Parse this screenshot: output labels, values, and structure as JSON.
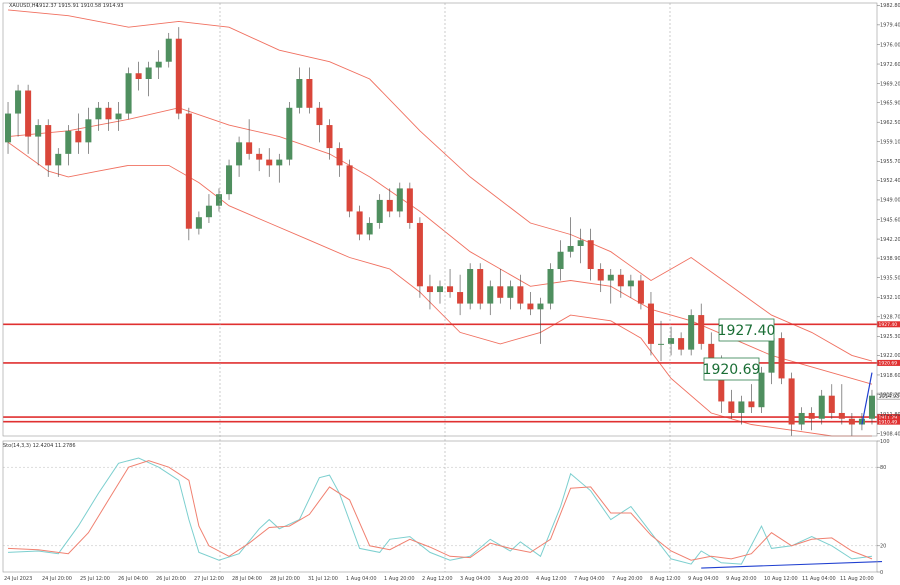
{
  "window": {
    "title": "XAUUSD,H4",
    "ohlc_text": "1912.37 1915.91 1910.58 1914.93"
  },
  "indicator": {
    "title": "Sto(14,3,3) 12.4204 11.2786"
  },
  "annotations": {
    "level_1": "1927.40",
    "level_2": "1920.69"
  },
  "colors": {
    "bull": "#4f8f5f",
    "bear": "#d9463a",
    "band": "#f07060",
    "level_line": "#e03030",
    "stoch_main": "#7ccfcf",
    "stoch_signal": "#f08070",
    "trendline": "#2040d0",
    "annotation_text": "#1a6e35",
    "annotation_border": "#2f7f4f"
  },
  "chart_data": [
    {
      "type": "candlestick",
      "symbol": "XAUUSD",
      "timeframe": "H4",
      "ylim": [
        1908.0,
        1983.2
      ],
      "y_ticks": [
        "1982.80",
        "1979.40",
        "1976.00",
        "1972.60",
        "1969.20",
        "1965.90",
        "1962.50",
        "1959.10",
        "1955.70",
        "1952.40",
        "1949.00",
        "1945.60",
        "1942.20",
        "1938.90",
        "1935.50",
        "1932.10",
        "1928.70",
        "1925.30",
        "1922.00",
        "1918.60",
        "1915.20",
        "1911.80",
        "1908.40"
      ],
      "x_ticks": [
        "24 Jul 2023",
        "24 Jul 20:00",
        "25 Jul 12:00",
        "26 Jul 04:00",
        "26 Jul 20:00",
        "27 Jul 12:00",
        "28 Jul 04:00",
        "28 Jul 20:00",
        "31 Jul 12:00",
        "1 Aug 04:00",
        "1 Aug 20:00",
        "2 Aug 12:00",
        "3 Aug 04:00",
        "3 Aug 20:00",
        "4 Aug 12:00",
        "7 Aug 04:00",
        "7 Aug 20:00",
        "8 Aug 12:00",
        "9 Aug 04:00",
        "9 Aug 20:00",
        "10 Aug 12:00",
        "11 Aug 04:00",
        "11 Aug 20:00"
      ],
      "candles": [
        [
          1959,
          1966,
          1957,
          1964
        ],
        [
          1964,
          1969,
          1960,
          1968
        ],
        [
          1968,
          1969,
          1957,
          1960
        ],
        [
          1960,
          1963,
          1955,
          1962
        ],
        [
          1962,
          1963,
          1953,
          1955
        ],
        [
          1955,
          1958,
          1953,
          1957
        ],
        [
          1957,
          1962,
          1955,
          1961
        ],
        [
          1961,
          1964,
          1957,
          1959
        ],
        [
          1959,
          1965,
          1957,
          1963
        ],
        [
          1963,
          1966,
          1961,
          1965
        ],
        [
          1965,
          1966,
          1961,
          1963
        ],
        [
          1963,
          1966,
          1961,
          1964
        ],
        [
          1964,
          1972,
          1963,
          1971
        ],
        [
          1971,
          1973,
          1968,
          1970
        ],
        [
          1970,
          1973,
          1967,
          1972
        ],
        [
          1972,
          1975,
          1970,
          1973
        ],
        [
          1973,
          1978,
          1972,
          1977
        ],
        [
          1977,
          1979,
          1963,
          1964
        ],
        [
          1964,
          1965,
          1942,
          1944
        ],
        [
          1944,
          1947,
          1943,
          1946
        ],
        [
          1946,
          1950,
          1945,
          1948
        ],
        [
          1948,
          1951,
          1947,
          1950
        ],
        [
          1950,
          1956,
          1949,
          1955
        ],
        [
          1955,
          1960,
          1953,
          1959
        ],
        [
          1959,
          1963,
          1956,
          1957
        ],
        [
          1957,
          1958,
          1954,
          1956
        ],
        [
          1956,
          1958,
          1953,
          1955
        ],
        [
          1955,
          1957,
          1952,
          1956
        ],
        [
          1956,
          1966,
          1955,
          1965
        ],
        [
          1965,
          1972,
          1964,
          1970
        ],
        [
          1970,
          1972,
          1964,
          1965
        ],
        [
          1965,
          1966,
          1959,
          1962
        ],
        [
          1962,
          1963,
          1956,
          1958
        ],
        [
          1958,
          1959,
          1953,
          1955
        ],
        [
          1955,
          1956,
          1946,
          1947
        ],
        [
          1947,
          1948,
          1942,
          1943
        ],
        [
          1943,
          1946,
          1942,
          1945
        ],
        [
          1945,
          1950,
          1944,
          1949
        ],
        [
          1949,
          1951,
          1946,
          1947
        ],
        [
          1947,
          1952,
          1946,
          1951
        ],
        [
          1951,
          1952,
          1944,
          1945
        ],
        [
          1945,
          1946,
          1932,
          1934
        ],
        [
          1934,
          1936,
          1930,
          1933
        ],
        [
          1933,
          1935,
          1931,
          1934
        ],
        [
          1934,
          1937,
          1932,
          1933
        ],
        [
          1933,
          1936,
          1929,
          1931
        ],
        [
          1931,
          1938,
          1930,
          1937
        ],
        [
          1937,
          1938,
          1930,
          1931
        ],
        [
          1931,
          1935,
          1929,
          1934
        ],
        [
          1934,
          1937,
          1931,
          1932
        ],
        [
          1932,
          1935,
          1930,
          1934
        ],
        [
          1934,
          1936,
          1930,
          1931
        ],
        [
          1931,
          1933,
          1929,
          1930
        ],
        [
          1930,
          1932,
          1924,
          1931
        ],
        [
          1931,
          1938,
          1930,
          1937
        ],
        [
          1937,
          1942,
          1935,
          1940
        ],
        [
          1940,
          1946,
          1939,
          1941
        ],
        [
          1941,
          1944,
          1938,
          1942
        ],
        [
          1942,
          1944,
          1935,
          1937
        ],
        [
          1937,
          1938,
          1933,
          1935
        ],
        [
          1935,
          1937,
          1931,
          1936
        ],
        [
          1936,
          1937,
          1932,
          1934
        ],
        [
          1934,
          1936,
          1932,
          1935
        ],
        [
          1935,
          1936,
          1930,
          1931
        ],
        [
          1931,
          1933,
          1922,
          1924
        ],
        [
          1924,
          1928,
          1921,
          1924
        ],
        [
          1924,
          1927,
          1922,
          1925
        ],
        [
          1925,
          1926,
          1922,
          1923
        ],
        [
          1923,
          1930,
          1922,
          1929
        ],
        [
          1929,
          1931,
          1923,
          1924
        ],
        [
          1924,
          1926,
          1920,
          1921
        ],
        [
          1921,
          1922,
          1912,
          1914
        ],
        [
          1914,
          1916,
          1911,
          1912
        ],
        [
          1912,
          1915,
          1910,
          1914
        ],
        [
          1914,
          1917,
          1912,
          1913
        ],
        [
          1913,
          1920,
          1912,
          1919
        ],
        [
          1919,
          1926,
          1917,
          1925
        ],
        [
          1925,
          1926,
          1917,
          1918
        ],
        [
          1918,
          1919,
          1908,
          1910
        ],
        [
          1910,
          1913,
          1909,
          1912
        ],
        [
          1912,
          1913,
          1909,
          1911
        ],
        [
          1911,
          1916,
          1910,
          1915
        ],
        [
          1915,
          1917,
          1911,
          1912
        ],
        [
          1912,
          1917,
          1910,
          1911
        ],
        [
          1911,
          1912,
          1908,
          1910
        ],
        [
          1910,
          1912,
          1909,
          1911
        ],
        [
          1911,
          1916,
          1910,
          1915
        ]
      ],
      "bollinger_upper": [
        [
          0,
          1982
        ],
        [
          6,
          1981
        ],
        [
          12,
          1979
        ],
        [
          17,
          1980
        ],
        [
          22,
          1979
        ],
        [
          27,
          1975
        ],
        [
          32,
          1973
        ],
        [
          36,
          1970
        ],
        [
          41,
          1961
        ],
        [
          46,
          1953
        ],
        [
          52,
          1945
        ],
        [
          56,
          1943
        ],
        [
          60,
          1940
        ],
        [
          64,
          1935
        ],
        [
          66,
          1937
        ],
        [
          68,
          1939
        ],
        [
          72,
          1934
        ],
        [
          76,
          1929
        ],
        [
          80,
          1926
        ],
        [
          84,
          1922
        ],
        [
          86,
          1921
        ]
      ],
      "bollinger_middle": [
        [
          0,
          1960
        ],
        [
          6,
          1961
        ],
        [
          12,
          1963
        ],
        [
          17,
          1965
        ],
        [
          22,
          1962
        ],
        [
          27,
          1960
        ],
        [
          32,
          1957
        ],
        [
          36,
          1953
        ],
        [
          41,
          1947
        ],
        [
          46,
          1940
        ],
        [
          52,
          1934
        ],
        [
          56,
          1935
        ],
        [
          60,
          1934
        ],
        [
          64,
          1930
        ],
        [
          66,
          1929
        ],
        [
          68,
          1928
        ],
        [
          72,
          1925
        ],
        [
          76,
          1922
        ],
        [
          80,
          1920
        ],
        [
          84,
          1918
        ],
        [
          86,
          1917
        ]
      ],
      "bollinger_lower": [
        [
          0,
          1959
        ],
        [
          4,
          1954
        ],
        [
          6,
          1953
        ],
        [
          9,
          1954
        ],
        [
          12,
          1955
        ],
        [
          16,
          1955
        ],
        [
          19,
          1952
        ],
        [
          22,
          1948
        ],
        [
          26,
          1945
        ],
        [
          30,
          1942
        ],
        [
          34,
          1939
        ],
        [
          38,
          1937
        ],
        [
          41,
          1933
        ],
        [
          45,
          1926
        ],
        [
          49,
          1924
        ],
        [
          53,
          1926
        ],
        [
          56,
          1929
        ],
        [
          60,
          1928
        ],
        [
          63,
          1925
        ],
        [
          66,
          1918
        ],
        [
          70,
          1912
        ],
        [
          74,
          1910
        ],
        [
          78,
          1909
        ],
        [
          82,
          1908
        ],
        [
          86,
          1908
        ]
      ],
      "horizontal_levels": [
        1927.4,
        1920.69,
        1911.29,
        1910.49
      ],
      "level_labels": [
        "1927.40",
        "1920.69",
        "1911.29",
        "1910.49"
      ],
      "current_price": 1914.93,
      "current_price_label": "1914.93",
      "trendline": [
        [
          85,
          1910
        ],
        [
          86,
          1919
        ]
      ]
    },
    {
      "type": "line",
      "title": "Sto(14,3,3)",
      "ylim": [
        0,
        100
      ],
      "y_ticks": [
        "100",
        "80",
        "20",
        "0"
      ],
      "series": [
        {
          "name": "main",
          "points": [
            [
              0,
              15
            ],
            [
              3,
              16
            ],
            [
              5,
              14
            ],
            [
              7,
              35
            ],
            [
              9,
              60
            ],
            [
              11,
              83
            ],
            [
              13,
              87
            ],
            [
              15,
              80
            ],
            [
              17,
              70
            ],
            [
              18,
              40
            ],
            [
              19,
              15
            ],
            [
              21,
              9
            ],
            [
              23,
              14
            ],
            [
              25,
              33
            ],
            [
              26,
              40
            ],
            [
              27,
              33
            ],
            [
              29,
              40
            ],
            [
              31,
              72
            ],
            [
              32,
              74
            ],
            [
              33,
              60
            ],
            [
              35,
              18
            ],
            [
              37,
              15
            ],
            [
              38,
              25
            ],
            [
              40,
              27
            ],
            [
              42,
              15
            ],
            [
              44,
              9
            ],
            [
              46,
              12
            ],
            [
              48,
              25
            ],
            [
              50,
              16
            ],
            [
              51,
              23
            ],
            [
              53,
              12
            ],
            [
              55,
              50
            ],
            [
              56,
              75
            ],
            [
              58,
              62
            ],
            [
              60,
              40
            ],
            [
              62,
              50
            ],
            [
              64,
              30
            ],
            [
              66,
              10
            ],
            [
              68,
              6
            ],
            [
              69,
              16
            ],
            [
              71,
              7
            ],
            [
              73,
              6
            ],
            [
              75,
              35
            ],
            [
              76,
              18
            ],
            [
              78,
              20
            ],
            [
              80,
              27
            ],
            [
              82,
              20
            ],
            [
              84,
              10
            ],
            [
              86,
              12
            ]
          ]
        },
        {
          "name": "signal",
          "points": [
            [
              0,
              18
            ],
            [
              3,
              17
            ],
            [
              6,
              14
            ],
            [
              8,
              30
            ],
            [
              10,
              55
            ],
            [
              12,
              80
            ],
            [
              14,
              85
            ],
            [
              16,
              80
            ],
            [
              18,
              70
            ],
            [
              19,
              35
            ],
            [
              20,
              20
            ],
            [
              22,
              12
            ],
            [
              24,
              22
            ],
            [
              26,
              34
            ],
            [
              28,
              35
            ],
            [
              30,
              44
            ],
            [
              32,
              65
            ],
            [
              34,
              55
            ],
            [
              36,
              20
            ],
            [
              38,
              17
            ],
            [
              40,
              25
            ],
            [
              42,
              19
            ],
            [
              44,
              12
            ],
            [
              46,
              11
            ],
            [
              48,
              22
            ],
            [
              50,
              18
            ],
            [
              52,
              15
            ],
            [
              54,
              25
            ],
            [
              56,
              64
            ],
            [
              58,
              65
            ],
            [
              60,
              45
            ],
            [
              62,
              45
            ],
            [
              64,
              28
            ],
            [
              66,
              16
            ],
            [
              68,
              9
            ],
            [
              70,
              12
            ],
            [
              72,
              10
            ],
            [
              74,
              14
            ],
            [
              76,
              30
            ],
            [
              78,
              20
            ],
            [
              80,
              25
            ],
            [
              82,
              26
            ],
            [
              84,
              16
            ],
            [
              86,
              10
            ]
          ]
        }
      ],
      "trendline": [
        [
          69,
          3
        ],
        [
          87,
          8
        ]
      ]
    }
  ]
}
